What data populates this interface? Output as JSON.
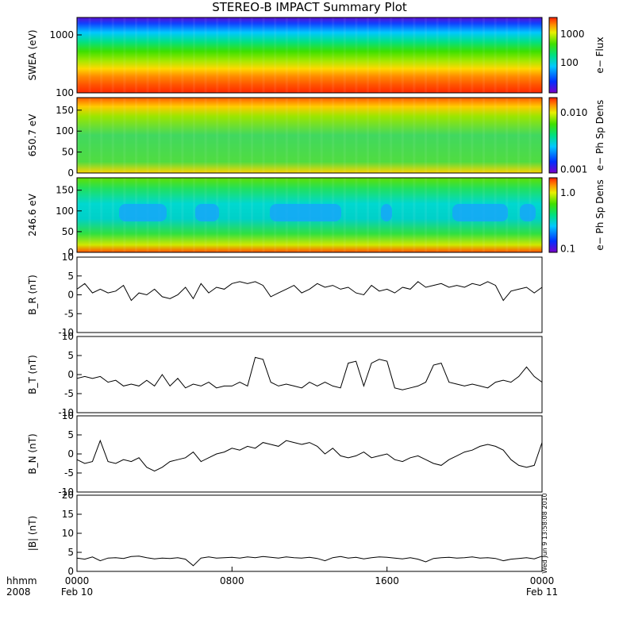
{
  "title": "STEREO-B IMPACT Summary Plot",
  "timestamp_note": "Wed Jun 9 13:58:08 2010",
  "x_axis": {
    "row1_label": "hhmm",
    "row2_label": "2008",
    "ticks": [
      {
        "time": "0000",
        "date": "Feb 10",
        "hour": 0
      },
      {
        "time": "0800",
        "date": "",
        "hour": 8
      },
      {
        "time": "1600",
        "date": "",
        "hour": 16
      },
      {
        "time": "0000",
        "date": "Feb 11",
        "hour": 24
      }
    ]
  },
  "chart_data": [
    {
      "type": "heatmap",
      "ylabel": "SWEA (eV)",
      "ylim": [
        100,
        2000
      ],
      "yscale": "log",
      "yticks": [
        100,
        1000
      ],
      "ytick_labels": [
        "100",
        "1000"
      ],
      "colorbar": {
        "label": "e− Flux",
        "ticks": [
          100,
          1000
        ],
        "tick_labels": [
          "100",
          "1000"
        ],
        "scale": "log"
      },
      "colormap": [
        "#7a00c8",
        "#0030ff",
        "#00c8ff",
        "#00e080",
        "#40e000",
        "#e8f000",
        "#ff9000",
        "#ff2000"
      ]
    },
    {
      "type": "heatmap",
      "ylabel": "650.7 eV",
      "ylim": [
        0,
        180
      ],
      "yticks": [
        0,
        50,
        100,
        150
      ],
      "colorbar": {
        "label": "e− Ph Sp Dens",
        "tick_labels": [
          "0.010",
          "0.001"
        ],
        "scale": "log"
      }
    },
    {
      "type": "heatmap",
      "ylabel": "246.6 eV",
      "ylim": [
        0,
        180
      ],
      "yticks": [
        0,
        50,
        100,
        150
      ],
      "colorbar": {
        "label": "e− Ph Sp Dens",
        "tick_labels": [
          "1.0",
          "0.1"
        ],
        "scale": "log"
      }
    },
    {
      "type": "line",
      "ylabel": "B_R (nT)",
      "ylim": [
        -10,
        10
      ],
      "yticks": [
        -10,
        -5,
        0,
        5,
        10
      ],
      "x": [
        0,
        0.4,
        0.8,
        1.2,
        1.6,
        2,
        2.4,
        2.8,
        3.2,
        3.6,
        4,
        4.4,
        4.8,
        5.2,
        5.6,
        6,
        6.4,
        6.8,
        7.2,
        7.6,
        8,
        8.4,
        8.8,
        9.2,
        9.6,
        10,
        10.4,
        10.8,
        11.2,
        11.6,
        12,
        12.4,
        12.8,
        13.2,
        13.6,
        14,
        14.4,
        14.8,
        15.2,
        15.6,
        16,
        16.4,
        16.8,
        17.2,
        17.6,
        18,
        18.4,
        18.8,
        19.2,
        19.6,
        20,
        20.4,
        20.8,
        21.2,
        21.6,
        22,
        22.4,
        22.8,
        23.2,
        23.6,
        24
      ],
      "values": [
        1.5,
        3,
        0.5,
        1.5,
        0.5,
        1,
        2.5,
        -1.5,
        0.5,
        0,
        1.5,
        -0.5,
        -1,
        0,
        2,
        -1,
        3,
        0.5,
        2,
        1.5,
        3,
        3.5,
        3,
        3.5,
        2.5,
        -0.5,
        0.5,
        1.5,
        2.5,
        0.5,
        1.5,
        3,
        2,
        2.5,
        1.5,
        2,
        0.5,
        0,
        2.5,
        1,
        1.5,
        0.5,
        2,
        1.5,
        3.5,
        2,
        2.5,
        3,
        2,
        2.5,
        2,
        3,
        2.5,
        3.5,
        2.5,
        -1.5,
        1,
        1.5,
        2,
        0.5,
        2
      ]
    },
    {
      "type": "line",
      "ylabel": "B_T (nT)",
      "ylim": [
        -10,
        10
      ],
      "yticks": [
        -10,
        -5,
        0,
        5,
        10
      ],
      "x": [
        0,
        0.4,
        0.8,
        1.2,
        1.6,
        2,
        2.4,
        2.8,
        3.2,
        3.6,
        4,
        4.4,
        4.8,
        5.2,
        5.6,
        6,
        6.4,
        6.8,
        7.2,
        7.6,
        8,
        8.4,
        8.8,
        9.2,
        9.6,
        10,
        10.4,
        10.8,
        11.2,
        11.6,
        12,
        12.4,
        12.8,
        13.2,
        13.6,
        14,
        14.4,
        14.8,
        15.2,
        15.6,
        16,
        16.4,
        16.8,
        17.2,
        17.6,
        18,
        18.4,
        18.8,
        19.2,
        19.6,
        20,
        20.4,
        20.8,
        21.2,
        21.6,
        22,
        22.4,
        22.8,
        23.2,
        23.6,
        24
      ],
      "values": [
        -1,
        -0.5,
        -1,
        -0.5,
        -2,
        -1.5,
        -3,
        -2.5,
        -3,
        -1.5,
        -3,
        0,
        -3,
        -1,
        -3.5,
        -2.5,
        -3,
        -2,
        -3.5,
        -3,
        -3,
        -2,
        -3,
        4.5,
        4,
        -2,
        -3,
        -2.5,
        -3,
        -3.5,
        -2,
        -3,
        -2,
        -3,
        -3.5,
        3,
        3.5,
        -3,
        3,
        4,
        3.5,
        -3.5,
        -4,
        -3.5,
        -3,
        -2,
        2.5,
        3,
        -2,
        -2.5,
        -3,
        -2.5,
        -3,
        -3.5,
        -2,
        -1.5,
        -2,
        -0.5,
        2,
        -0.5,
        -2
      ]
    },
    {
      "type": "line",
      "ylabel": "B_N (nT)",
      "ylim": [
        -10,
        10
      ],
      "yticks": [
        -10,
        -5,
        0,
        5,
        10
      ],
      "x": [
        0,
        0.4,
        0.8,
        1.2,
        1.6,
        2,
        2.4,
        2.8,
        3.2,
        3.6,
        4,
        4.4,
        4.8,
        5.2,
        5.6,
        6,
        6.4,
        6.8,
        7.2,
        7.6,
        8,
        8.4,
        8.8,
        9.2,
        9.6,
        10,
        10.4,
        10.8,
        11.2,
        11.6,
        12,
        12.4,
        12.8,
        13.2,
        13.6,
        14,
        14.4,
        14.8,
        15.2,
        15.6,
        16,
        16.4,
        16.8,
        17.2,
        17.6,
        18,
        18.4,
        18.8,
        19.2,
        19.6,
        20,
        20.4,
        20.8,
        21.2,
        21.6,
        22,
        22.4,
        22.8,
        23.2,
        23.6,
        24
      ],
      "values": [
        -1.5,
        -2.5,
        -2,
        3.5,
        -2,
        -2.5,
        -1.5,
        -2,
        -1,
        -3.5,
        -4.5,
        -3.5,
        -2,
        -1.5,
        -1,
        0.5,
        -2,
        -1,
        0,
        0.5,
        1.5,
        1,
        2,
        1.5,
        3,
        2.5,
        2,
        3.5,
        3,
        2.5,
        3,
        2,
        0,
        1.5,
        -0.5,
        -1,
        -0.5,
        0.5,
        -1,
        -0.5,
        0,
        -1.5,
        -2,
        -1,
        -0.5,
        -1.5,
        -2.5,
        -3,
        -1.5,
        -0.5,
        0.5,
        1,
        2,
        2.5,
        2,
        1,
        -1.5,
        -3,
        -3.5,
        -3,
        3
      ]
    },
    {
      "type": "line",
      "ylabel": "|B| (nT)",
      "ylim": [
        0,
        20
      ],
      "yticks": [
        0,
        5,
        10,
        15,
        20
      ],
      "x": [
        0,
        0.4,
        0.8,
        1.2,
        1.6,
        2,
        2.4,
        2.8,
        3.2,
        3.6,
        4,
        4.4,
        4.8,
        5.2,
        5.6,
        6,
        6.4,
        6.8,
        7.2,
        7.6,
        8,
        8.4,
        8.8,
        9.2,
        9.6,
        10,
        10.4,
        10.8,
        11.2,
        11.6,
        12,
        12.4,
        12.8,
        13.2,
        13.6,
        14,
        14.4,
        14.8,
        15.2,
        15.6,
        16,
        16.4,
        16.8,
        17.2,
        17.6,
        18,
        18.4,
        18.8,
        19.2,
        19.6,
        20,
        20.4,
        20.8,
        21.2,
        21.6,
        22,
        22.4,
        22.8,
        23.2,
        23.6,
        24
      ],
      "values": [
        3.5,
        3.2,
        3.8,
        2.8,
        3.5,
        3.6,
        3.4,
        3.9,
        4,
        3.6,
        3.3,
        3.5,
        3.4,
        3.6,
        3.2,
        1.5,
        3.5,
        3.8,
        3.5,
        3.6,
        3.7,
        3.5,
        3.8,
        3.6,
        3.9,
        3.7,
        3.5,
        3.8,
        3.6,
        3.5,
        3.7,
        3.4,
        2.8,
        3.6,
        3.9,
        3.5,
        3.7,
        3.3,
        3.6,
        3.8,
        3.7,
        3.5,
        3.3,
        3.6,
        3.2,
        2.5,
        3.4,
        3.6,
        3.7,
        3.5,
        3.6,
        3.8,
        3.5,
        3.6,
        3.4,
        2.8,
        3.2,
        3.4,
        3.6,
        3.3,
        4
      ]
    }
  ]
}
